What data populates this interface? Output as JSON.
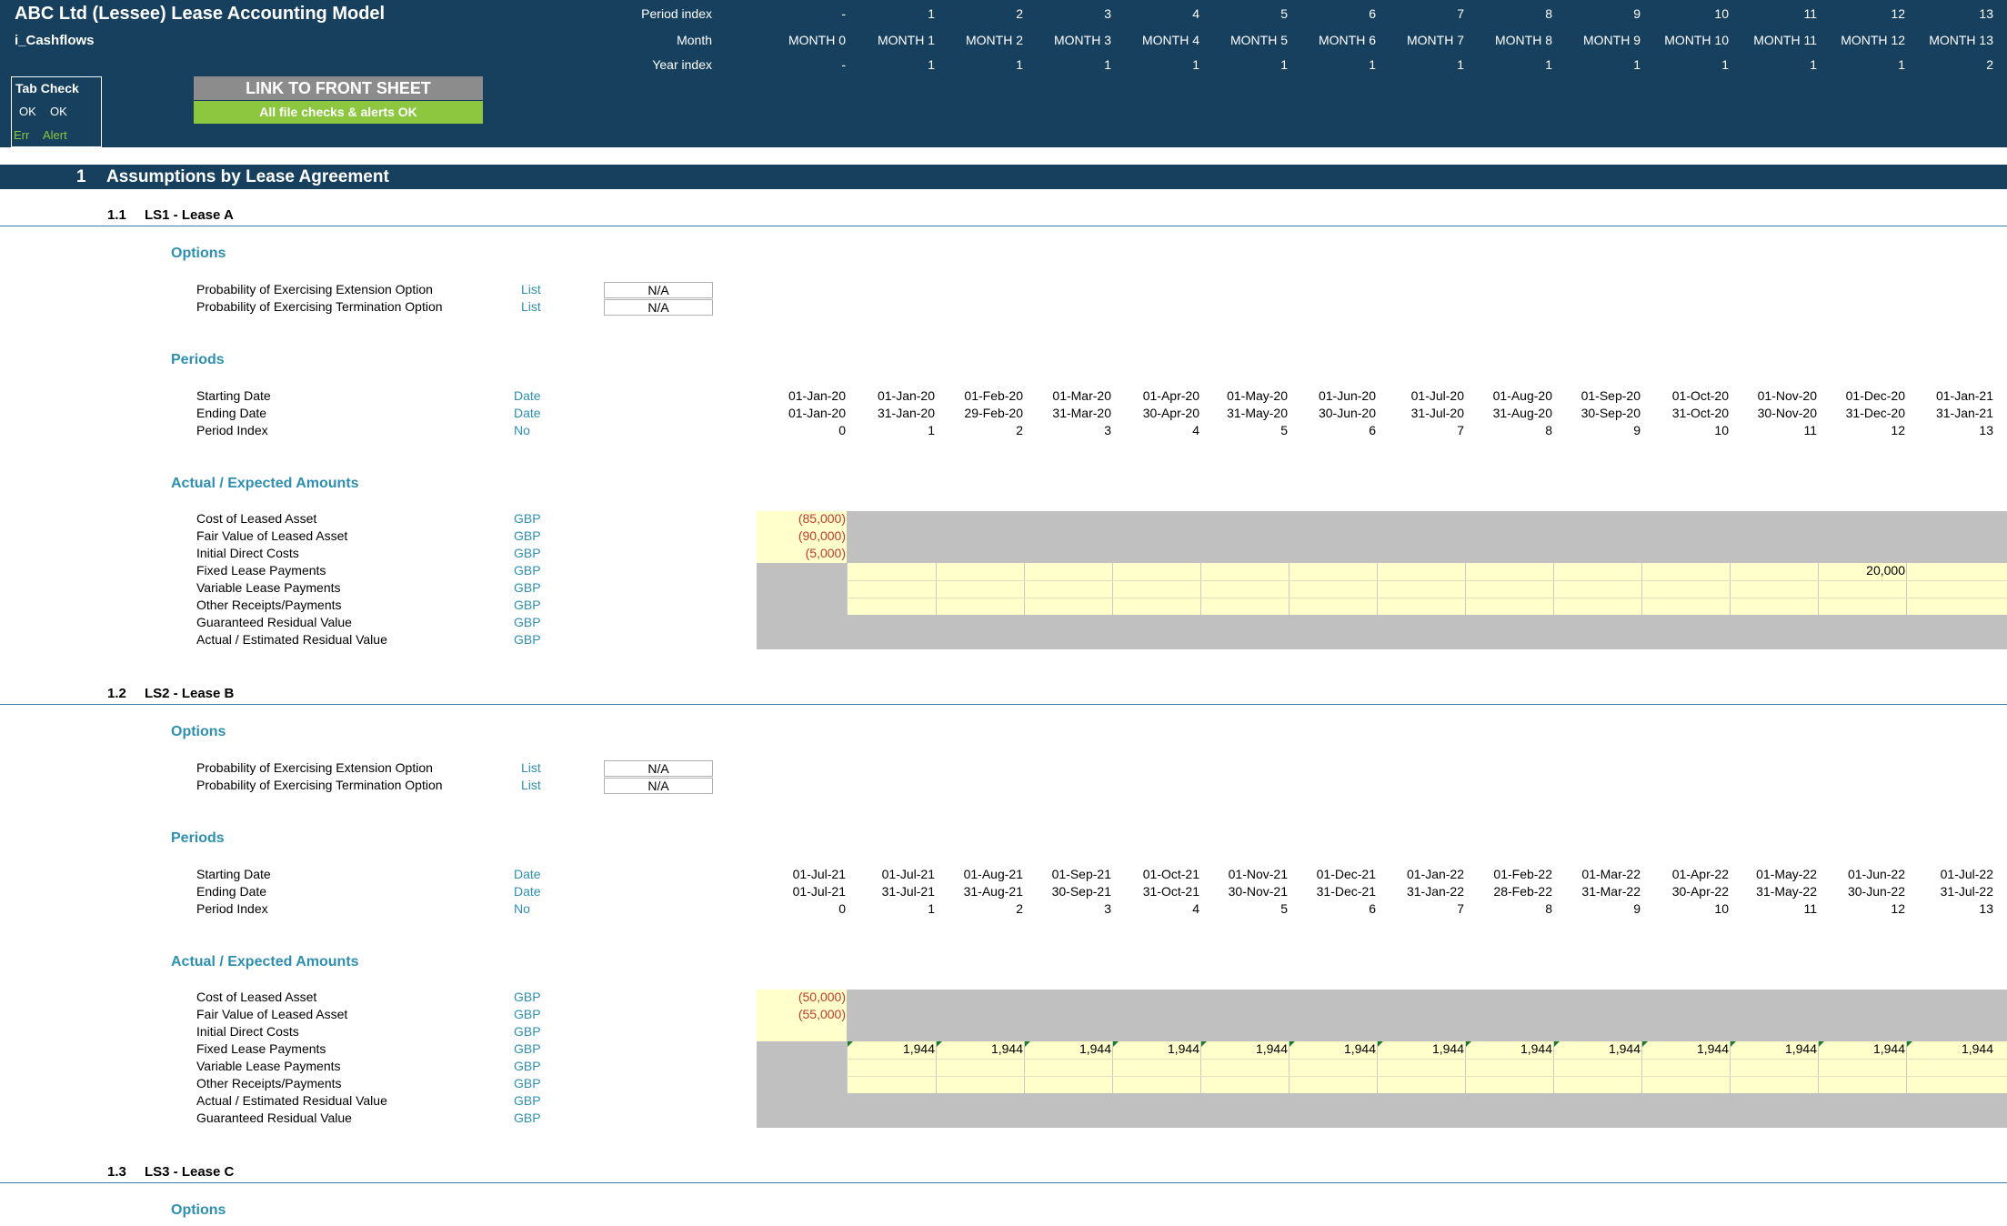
{
  "header": {
    "title": "ABC Ltd (Lessee) Lease Accounting Model",
    "sheet": "i_Cashflows",
    "period_index_label": "Period index",
    "month_label": "Month",
    "year_index_label": "Year index",
    "period_index": [
      "-",
      "1",
      "2",
      "3",
      "4",
      "5",
      "6",
      "7",
      "8",
      "9",
      "10",
      "11",
      "12",
      "13"
    ],
    "months": [
      "MONTH 0",
      "MONTH 1",
      "MONTH 2",
      "MONTH 3",
      "MONTH 4",
      "MONTH 5",
      "MONTH 6",
      "MONTH 7",
      "MONTH 8",
      "MONTH 9",
      "MONTH 10",
      "MONTH 11",
      "MONTH 12",
      "MONTH 13"
    ],
    "year_index": [
      "-",
      "1",
      "1",
      "1",
      "1",
      "1",
      "1",
      "1",
      "1",
      "1",
      "1",
      "1",
      "1",
      "2"
    ],
    "tab_check": {
      "title": "Tab Check",
      "ok1": "OK",
      "ok2": "OK",
      "err": "Err",
      "alert": "Alert"
    },
    "link_button": "LINK TO FRONT SHEET",
    "status_button": "All file checks & alerts OK"
  },
  "section": {
    "number": "1",
    "title": "Assumptions by Lease Agreement"
  },
  "leases": [
    {
      "number": "1.1",
      "name": "LS1 - Lease A",
      "options_title": "Options",
      "options": [
        {
          "label": "Probability of Exercising Extension Option",
          "unit": "List",
          "value": "N/A"
        },
        {
          "label": "Probability of Exercising Termination Option",
          "unit": "List",
          "value": "N/A"
        }
      ],
      "periods_title": "Periods",
      "periods": [
        {
          "label": "Starting Date",
          "unit": "Date",
          "values": [
            "01-Jan-20",
            "01-Jan-20",
            "01-Feb-20",
            "01-Mar-20",
            "01-Apr-20",
            "01-May-20",
            "01-Jun-20",
            "01-Jul-20",
            "01-Aug-20",
            "01-Sep-20",
            "01-Oct-20",
            "01-Nov-20",
            "01-Dec-20",
            "01-Jan-21"
          ]
        },
        {
          "label": "Ending Date",
          "unit": "Date",
          "values": [
            "01-Jan-20",
            "31-Jan-20",
            "29-Feb-20",
            "31-Mar-20",
            "30-Apr-20",
            "31-May-20",
            "30-Jun-20",
            "31-Jul-20",
            "31-Aug-20",
            "30-Sep-20",
            "31-Oct-20",
            "30-Nov-20",
            "31-Dec-20",
            "31-Jan-21"
          ]
        },
        {
          "label": "Period Index",
          "unit": "No",
          "values": [
            "0",
            "1",
            "2",
            "3",
            "4",
            "5",
            "6",
            "7",
            "8",
            "9",
            "10",
            "11",
            "12",
            "13"
          ]
        }
      ],
      "amounts_title": "Actual / Expected Amounts",
      "amounts": [
        {
          "label": "Cost of Leased Asset",
          "unit": "GBP",
          "m0": "(85,000)"
        },
        {
          "label": "Fair Value of Leased Asset",
          "unit": "GBP",
          "m0": "(90,000)"
        },
        {
          "label": "Initial Direct Costs",
          "unit": "GBP",
          "m0": "(5,000)"
        },
        {
          "label": "Fixed Lease Payments",
          "unit": "GBP",
          "m0": ""
        },
        {
          "label": "Variable Lease Payments",
          "unit": "GBP",
          "m0": ""
        },
        {
          "label": "Other Receipts/Payments",
          "unit": "GBP",
          "m0": ""
        },
        {
          "label": "Guaranteed Residual Value",
          "unit": "GBP",
          "m0": ""
        },
        {
          "label": "Actual / Estimated Residual Value",
          "unit": "GBP",
          "m0": ""
        }
      ],
      "fixed_payment_m12": "20,000"
    },
    {
      "number": "1.2",
      "name": "LS2 - Lease B",
      "options_title": "Options",
      "options": [
        {
          "label": "Probability of Exercising Extension Option",
          "unit": "List",
          "value": "N/A"
        },
        {
          "label": "Probability of Exercising Termination Option",
          "unit": "List",
          "value": "N/A"
        }
      ],
      "periods_title": "Periods",
      "periods": [
        {
          "label": "Starting Date",
          "unit": "Date",
          "values": [
            "01-Jul-21",
            "01-Jul-21",
            "01-Aug-21",
            "01-Sep-21",
            "01-Oct-21",
            "01-Nov-21",
            "01-Dec-21",
            "01-Jan-22",
            "01-Feb-22",
            "01-Mar-22",
            "01-Apr-22",
            "01-May-22",
            "01-Jun-22",
            "01-Jul-22"
          ]
        },
        {
          "label": "Ending Date",
          "unit": "Date",
          "values": [
            "01-Jul-21",
            "31-Jul-21",
            "31-Aug-21",
            "30-Sep-21",
            "31-Oct-21",
            "30-Nov-21",
            "31-Dec-21",
            "31-Jan-22",
            "28-Feb-22",
            "31-Mar-22",
            "30-Apr-22",
            "31-May-22",
            "30-Jun-22",
            "31-Jul-22"
          ]
        },
        {
          "label": "Period Index",
          "unit": "No",
          "values": [
            "0",
            "1",
            "2",
            "3",
            "4",
            "5",
            "6",
            "7",
            "8",
            "9",
            "10",
            "11",
            "12",
            "13"
          ]
        }
      ],
      "amounts_title": "Actual / Expected Amounts",
      "amounts": [
        {
          "label": "Cost of Leased Asset",
          "unit": "GBP",
          "m0": "(50,000)"
        },
        {
          "label": "Fair Value of Leased Asset",
          "unit": "GBP",
          "m0": "(55,000)"
        },
        {
          "label": "Initial Direct Costs",
          "unit": "GBP",
          "m0": ""
        },
        {
          "label": "Fixed Lease Payments",
          "unit": "GBP",
          "m0": ""
        },
        {
          "label": "Variable Lease Payments",
          "unit": "GBP",
          "m0": ""
        },
        {
          "label": "Other Receipts/Payments",
          "unit": "GBP",
          "m0": ""
        },
        {
          "label": "Actual / Estimated Residual Value",
          "unit": "GBP",
          "m0": ""
        },
        {
          "label": "Guaranteed Residual Value",
          "unit": "GBP",
          "m0": ""
        }
      ],
      "fixed_payments": [
        "1,944",
        "1,944",
        "1,944",
        "1,944",
        "1,944",
        "1,944",
        "1,944",
        "1,944",
        "1,944",
        "1,944",
        "1,944",
        "1,944",
        "1,944"
      ]
    },
    {
      "number": "1.3",
      "name": "LS3 - Lease C",
      "options_title": "Options"
    }
  ]
}
